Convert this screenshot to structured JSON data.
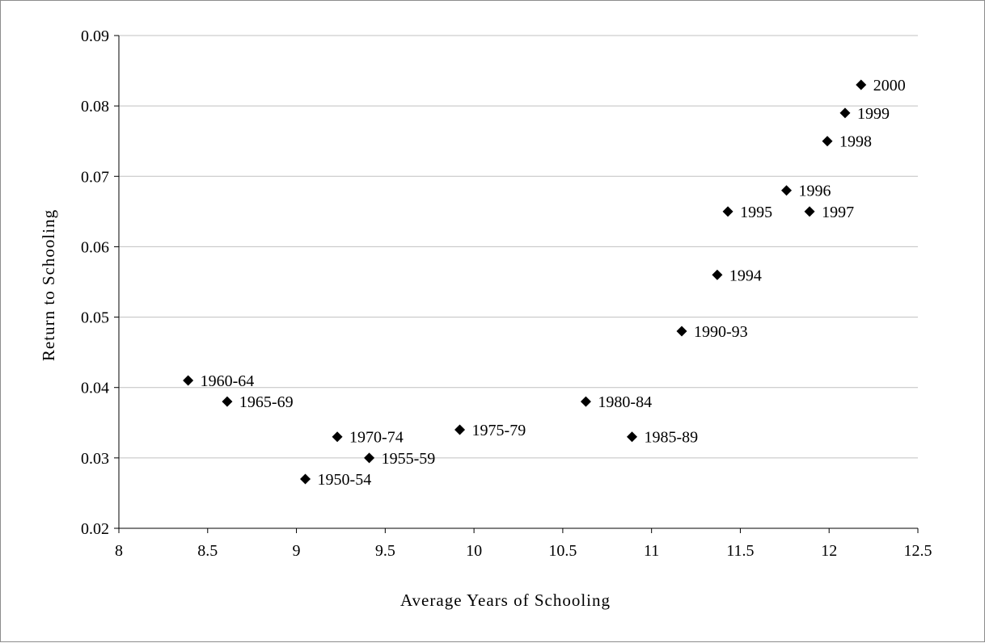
{
  "chart_data": {
    "type": "scatter",
    "title": "",
    "xlabel": "Average Years of Schooling",
    "ylabel": "Return to Schooling",
    "xlim": [
      8,
      12.5
    ],
    "ylim": [
      0.02,
      0.09
    ],
    "x_ticks": [
      "8",
      "8.5",
      "9",
      "9.5",
      "10",
      "10.5",
      "11",
      "11.5",
      "12",
      "12.5"
    ],
    "y_ticks": [
      "0.02",
      "0.03",
      "0.04",
      "0.05",
      "0.06",
      "0.07",
      "0.08",
      "0.09"
    ],
    "grid": "horizontal",
    "legend": "none",
    "marker": "diamond",
    "marker_color": "#000000",
    "gridline_color": "#c0c0c0",
    "points": [
      {
        "label": "1950-54",
        "x": 9.05,
        "y": 0.027
      },
      {
        "label": "1955-59",
        "x": 9.41,
        "y": 0.03
      },
      {
        "label": "1960-64",
        "x": 8.39,
        "y": 0.041
      },
      {
        "label": "1965-69",
        "x": 8.61,
        "y": 0.038
      },
      {
        "label": "1970-74",
        "x": 9.23,
        "y": 0.033
      },
      {
        "label": "1975-79",
        "x": 9.92,
        "y": 0.034
      },
      {
        "label": "1980-84",
        "x": 10.63,
        "y": 0.038
      },
      {
        "label": "1985-89",
        "x": 10.89,
        "y": 0.033
      },
      {
        "label": "1990-93",
        "x": 11.17,
        "y": 0.048
      },
      {
        "label": "1994",
        "x": 11.37,
        "y": 0.056
      },
      {
        "label": "1995",
        "x": 11.43,
        "y": 0.065
      },
      {
        "label": "1996",
        "x": 11.76,
        "y": 0.068
      },
      {
        "label": "1997",
        "x": 11.89,
        "y": 0.065
      },
      {
        "label": "1998",
        "x": 11.99,
        "y": 0.075
      },
      {
        "label": "1999",
        "x": 12.09,
        "y": 0.079
      },
      {
        "label": "2000",
        "x": 12.18,
        "y": 0.083
      }
    ]
  }
}
